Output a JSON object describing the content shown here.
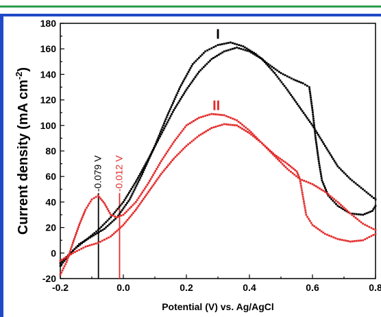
{
  "chart_data": {
    "type": "scatter",
    "xlabel": "Potential (V) vs. Ag/AgCl",
    "ylabel_main": "Current density (mA cm",
    "ylabel_sup": "-2",
    "ylabel_close": ")",
    "xlim": [
      -0.2,
      0.8
    ],
    "ylim": [
      -20,
      180
    ],
    "x_ticks": [
      "-0.2",
      "0.0",
      "0.2",
      "0.4",
      "0.6",
      "0.8"
    ],
    "x_tick_values": [
      -0.2,
      0.0,
      0.2,
      0.4,
      0.6,
      0.8
    ],
    "y_ticks": [
      "-20",
      "0",
      "20",
      "40",
      "60",
      "80",
      "100",
      "120",
      "140",
      "160",
      "180"
    ],
    "y_tick_values": [
      -20,
      0,
      20,
      40,
      60,
      80,
      100,
      120,
      140,
      160,
      180
    ],
    "grid": false,
    "series": [
      {
        "name": "I",
        "color": "#000000",
        "forward": [
          [
            -0.2,
            -10
          ],
          [
            -0.17,
            -1
          ],
          [
            -0.14,
            7
          ],
          [
            -0.1,
            13
          ],
          [
            -0.06,
            19
          ],
          [
            -0.02,
            28
          ],
          [
            0.02,
            42
          ],
          [
            0.06,
            62
          ],
          [
            0.1,
            84
          ],
          [
            0.14,
            108
          ],
          [
            0.18,
            130
          ],
          [
            0.22,
            148
          ],
          [
            0.26,
            158
          ],
          [
            0.3,
            163
          ],
          [
            0.34,
            165
          ],
          [
            0.38,
            162
          ],
          [
            0.42,
            156
          ],
          [
            0.46,
            148
          ],
          [
            0.5,
            141
          ],
          [
            0.54,
            136
          ],
          [
            0.57,
            133
          ],
          [
            0.59,
            130
          ],
          [
            0.6,
            112
          ],
          [
            0.61,
            90
          ],
          [
            0.62,
            72
          ],
          [
            0.63,
            57
          ],
          [
            0.65,
            45
          ],
          [
            0.68,
            37
          ],
          [
            0.72,
            31
          ],
          [
            0.76,
            30
          ],
          [
            0.79,
            33
          ],
          [
            0.8,
            37
          ]
        ],
        "reverse": [
          [
            0.8,
            42
          ],
          [
            0.76,
            50
          ],
          [
            0.72,
            58
          ],
          [
            0.68,
            68
          ],
          [
            0.64,
            84
          ],
          [
            0.6,
            100
          ],
          [
            0.56,
            114
          ],
          [
            0.52,
            128
          ],
          [
            0.48,
            141
          ],
          [
            0.44,
            152
          ],
          [
            0.4,
            158
          ],
          [
            0.36,
            161
          ],
          [
            0.32,
            158
          ],
          [
            0.28,
            152
          ],
          [
            0.24,
            142
          ],
          [
            0.2,
            128
          ],
          [
            0.16,
            112
          ],
          [
            0.12,
            93
          ],
          [
            0.08,
            74
          ],
          [
            0.04,
            56
          ],
          [
            0.0,
            40
          ],
          [
            -0.04,
            28
          ],
          [
            -0.08,
            18
          ],
          [
            -0.12,
            10
          ],
          [
            -0.16,
            2
          ],
          [
            -0.2,
            -8
          ]
        ]
      },
      {
        "name": "II",
        "color": "#e32b2b",
        "forward": [
          [
            -0.2,
            -17
          ],
          [
            -0.18,
            -7
          ],
          [
            -0.16,
            8
          ],
          [
            -0.14,
            22
          ],
          [
            -0.12,
            34
          ],
          [
            -0.1,
            42
          ],
          [
            -0.08,
            45
          ],
          [
            -0.06,
            39
          ],
          [
            -0.04,
            30
          ],
          [
            -0.02,
            28
          ],
          [
            0.0,
            30
          ],
          [
            0.04,
            40
          ],
          [
            0.08,
            55
          ],
          [
            0.12,
            72
          ],
          [
            0.16,
            87
          ],
          [
            0.2,
            100
          ],
          [
            0.24,
            106
          ],
          [
            0.28,
            109
          ],
          [
            0.32,
            108
          ],
          [
            0.36,
            104
          ],
          [
            0.4,
            96
          ],
          [
            0.44,
            86
          ],
          [
            0.48,
            77
          ],
          [
            0.52,
            70
          ],
          [
            0.55,
            64
          ],
          [
            0.56,
            58
          ],
          [
            0.57,
            44
          ],
          [
            0.58,
            30
          ],
          [
            0.6,
            22
          ],
          [
            0.64,
            15
          ],
          [
            0.68,
            11
          ],
          [
            0.72,
            9
          ],
          [
            0.76,
            10
          ],
          [
            0.8,
            15
          ]
        ],
        "reverse": [
          [
            0.8,
            18
          ],
          [
            0.76,
            23
          ],
          [
            0.72,
            31
          ],
          [
            0.68,
            40
          ],
          [
            0.64,
            48
          ],
          [
            0.6,
            54
          ],
          [
            0.56,
            58
          ],
          [
            0.52,
            66
          ],
          [
            0.48,
            76
          ],
          [
            0.44,
            86
          ],
          [
            0.4,
            94
          ],
          [
            0.36,
            100
          ],
          [
            0.32,
            101
          ],
          [
            0.28,
            98
          ],
          [
            0.24,
            92
          ],
          [
            0.2,
            84
          ],
          [
            0.16,
            74
          ],
          [
            0.12,
            62
          ],
          [
            0.08,
            48
          ],
          [
            0.04,
            34
          ],
          [
            0.0,
            22
          ],
          [
            -0.04,
            13
          ],
          [
            -0.08,
            8
          ],
          [
            -0.12,
            5
          ],
          [
            -0.16,
            0
          ],
          [
            -0.2,
            -6
          ]
        ]
      }
    ],
    "curve_labels": [
      {
        "text": "I",
        "x": 0.3,
        "y": 168,
        "color": "#000000"
      },
      {
        "text": "II",
        "x": 0.295,
        "y": 112,
        "color": "#e32b2b"
      }
    ],
    "vlines": [
      {
        "x": -0.079,
        "y0": -20,
        "y1": 47,
        "color": "#000000",
        "label": "-0.079 V"
      },
      {
        "x": -0.012,
        "y0": -20,
        "y1": 47,
        "color": "#e32b2b",
        "label": "-0.012 V"
      }
    ]
  }
}
